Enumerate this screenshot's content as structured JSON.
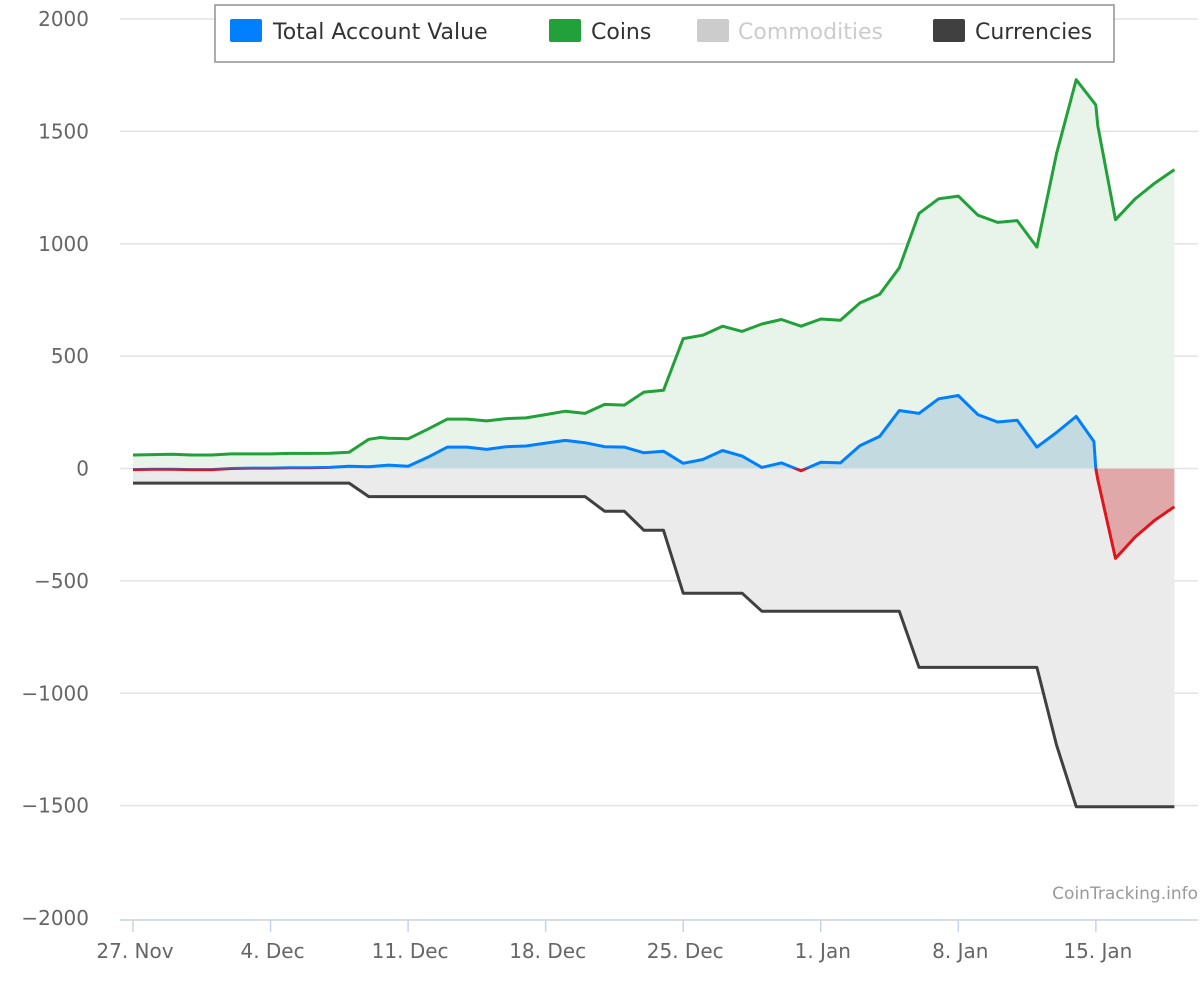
{
  "chart_data": {
    "type": "area",
    "title": "",
    "xlabel": "",
    "ylabel": "",
    "ylim": [
      -2000,
      2000
    ],
    "ytick_values": [
      2000,
      1500,
      1000,
      500,
      0,
      -500,
      -1000,
      -1500,
      -2000
    ],
    "ytick_labels": [
      "2000",
      "1500",
      "1000",
      "500",
      "0",
      "−500",
      "−1000",
      "−1500",
      "−2000"
    ],
    "xlim_day": [
      -0.2,
      52.5
    ],
    "xtick_day": [
      0,
      7,
      14,
      21,
      28,
      35,
      42,
      49
    ],
    "xtick_labels": [
      "27. Nov",
      "4. Dec",
      "11. Dec",
      "18. Dec",
      "25. Dec",
      "1. Jan",
      "8. Jan",
      "15. Jan"
    ],
    "legend": {
      "position": "top-center",
      "items": [
        {
          "key": "total",
          "label": "Total Account Value",
          "color": "#0080ff",
          "visible": true
        },
        {
          "key": "coins",
          "label": "Coins",
          "color": "#22a03a",
          "visible": true
        },
        {
          "key": "commodities",
          "label": "Commodities",
          "color": "#cccccc",
          "visible": false
        },
        {
          "key": "currencies",
          "label": "Currencies",
          "color": "#404040",
          "visible": true
        }
      ]
    },
    "negative_color": "#e0141c",
    "credits": "CoinTracking.info",
    "series": [
      {
        "key": "coins",
        "name": "Coins",
        "color": "#22a03a",
        "fill": "#e8f4ea",
        "points": [
          [
            0,
            60
          ],
          [
            1,
            62
          ],
          [
            2,
            63
          ],
          [
            3,
            60
          ],
          [
            4,
            60
          ],
          [
            5,
            65
          ],
          [
            6,
            65
          ],
          [
            7,
            65
          ],
          [
            8,
            67
          ],
          [
            9,
            67
          ],
          [
            10,
            68
          ],
          [
            11,
            72
          ],
          [
            12,
            130
          ],
          [
            12.6,
            138
          ],
          [
            13,
            135
          ],
          [
            14,
            132
          ],
          [
            15,
            175
          ],
          [
            16,
            220
          ],
          [
            17,
            220
          ],
          [
            18,
            212
          ],
          [
            19,
            222
          ],
          [
            20,
            225
          ],
          [
            21,
            240
          ],
          [
            22,
            255
          ],
          [
            23,
            245
          ],
          [
            24,
            285
          ],
          [
            25,
            282
          ],
          [
            26,
            340
          ],
          [
            27,
            348
          ],
          [
            28,
            578
          ],
          [
            29,
            593
          ],
          [
            30,
            633
          ],
          [
            31,
            610
          ],
          [
            32,
            643
          ],
          [
            33,
            663
          ],
          [
            34,
            633
          ],
          [
            35,
            665
          ],
          [
            36,
            660
          ],
          [
            37,
            737
          ],
          [
            38,
            775
          ],
          [
            39,
            893
          ],
          [
            40,
            1135
          ],
          [
            41,
            1200
          ],
          [
            42,
            1212
          ],
          [
            43,
            1127
          ],
          [
            44,
            1095
          ],
          [
            45,
            1103
          ],
          [
            46,
            985
          ],
          [
            47,
            1400
          ],
          [
            48,
            1730
          ],
          [
            49,
            1618
          ],
          [
            49.1,
            1525
          ],
          [
            50,
            1107
          ],
          [
            51,
            1200
          ],
          [
            52,
            1270
          ],
          [
            53,
            1330
          ]
        ]
      },
      {
        "key": "total",
        "name": "Total Account Value",
        "color": "#0080ff",
        "fill": "#bcd6de",
        "points": [
          [
            0,
            -5
          ],
          [
            1,
            -3
          ],
          [
            2,
            -3
          ],
          [
            3,
            -5
          ],
          [
            4,
            -5
          ],
          [
            5,
            0
          ],
          [
            6,
            2
          ],
          [
            7,
            2
          ],
          [
            8,
            3
          ],
          [
            9,
            3
          ],
          [
            10,
            5
          ],
          [
            11,
            10
          ],
          [
            12,
            8
          ],
          [
            13,
            15
          ],
          [
            14,
            10
          ],
          [
            15,
            50
          ],
          [
            16,
            95
          ],
          [
            17,
            95
          ],
          [
            18,
            85
          ],
          [
            19,
            97
          ],
          [
            20,
            100
          ],
          [
            21,
            113
          ],
          [
            22,
            125
          ],
          [
            23,
            115
          ],
          [
            24,
            97
          ],
          [
            25,
            95
          ],
          [
            26,
            70
          ],
          [
            27,
            77
          ],
          [
            28,
            23
          ],
          [
            29,
            40
          ],
          [
            30,
            80
          ],
          [
            31,
            55
          ],
          [
            32,
            5
          ],
          [
            33,
            25
          ],
          [
            34,
            -10
          ],
          [
            35,
            28
          ],
          [
            36,
            25
          ],
          [
            37,
            102
          ],
          [
            38,
            143
          ],
          [
            39,
            258
          ],
          [
            40,
            245
          ],
          [
            41,
            310
          ],
          [
            42,
            325
          ],
          [
            43,
            240
          ],
          [
            44,
            207
          ],
          [
            45,
            215
          ],
          [
            46,
            95
          ],
          [
            47,
            160
          ],
          [
            48,
            232
          ],
          [
            48.9,
            120
          ],
          [
            49,
            0
          ],
          [
            49.1,
            -50
          ],
          [
            50,
            -400
          ],
          [
            51,
            -305
          ],
          [
            52,
            -230
          ],
          [
            53,
            -170
          ]
        ]
      },
      {
        "key": "currencies",
        "name": "Currencies",
        "color": "#404040",
        "fill": "#ebebeb",
        "points": [
          [
            0,
            -65
          ],
          [
            1,
            -65
          ],
          [
            2,
            -65
          ],
          [
            3,
            -65
          ],
          [
            4,
            -65
          ],
          [
            5,
            -65
          ],
          [
            6,
            -65
          ],
          [
            7,
            -65
          ],
          [
            8,
            -65
          ],
          [
            9,
            -65
          ],
          [
            10,
            -65
          ],
          [
            11,
            -65
          ],
          [
            12,
            -125
          ],
          [
            13,
            -125
          ],
          [
            14,
            -125
          ],
          [
            15,
            -125
          ],
          [
            16,
            -125
          ],
          [
            17,
            -125
          ],
          [
            18,
            -125
          ],
          [
            19,
            -125
          ],
          [
            20,
            -125
          ],
          [
            21,
            -125
          ],
          [
            22,
            -125
          ],
          [
            23,
            -125
          ],
          [
            24,
            -190
          ],
          [
            25,
            -190
          ],
          [
            26,
            -275
          ],
          [
            27,
            -275
          ],
          [
            28,
            -555
          ],
          [
            29,
            -555
          ],
          [
            30,
            -555
          ],
          [
            31,
            -555
          ],
          [
            32,
            -635
          ],
          [
            33,
            -635
          ],
          [
            34,
            -635
          ],
          [
            35,
            -635
          ],
          [
            36,
            -635
          ],
          [
            37,
            -635
          ],
          [
            38,
            -635
          ],
          [
            39,
            -635
          ],
          [
            40,
            -885
          ],
          [
            41,
            -885
          ],
          [
            42,
            -885
          ],
          [
            43,
            -885
          ],
          [
            44,
            -885
          ],
          [
            45,
            -885
          ],
          [
            46,
            -885
          ],
          [
            47,
            -1230
          ],
          [
            48,
            -1505
          ],
          [
            49,
            -1505
          ],
          [
            50,
            -1505
          ],
          [
            51,
            -1505
          ],
          [
            52,
            -1505
          ],
          [
            53,
            -1505
          ]
        ]
      }
    ]
  }
}
